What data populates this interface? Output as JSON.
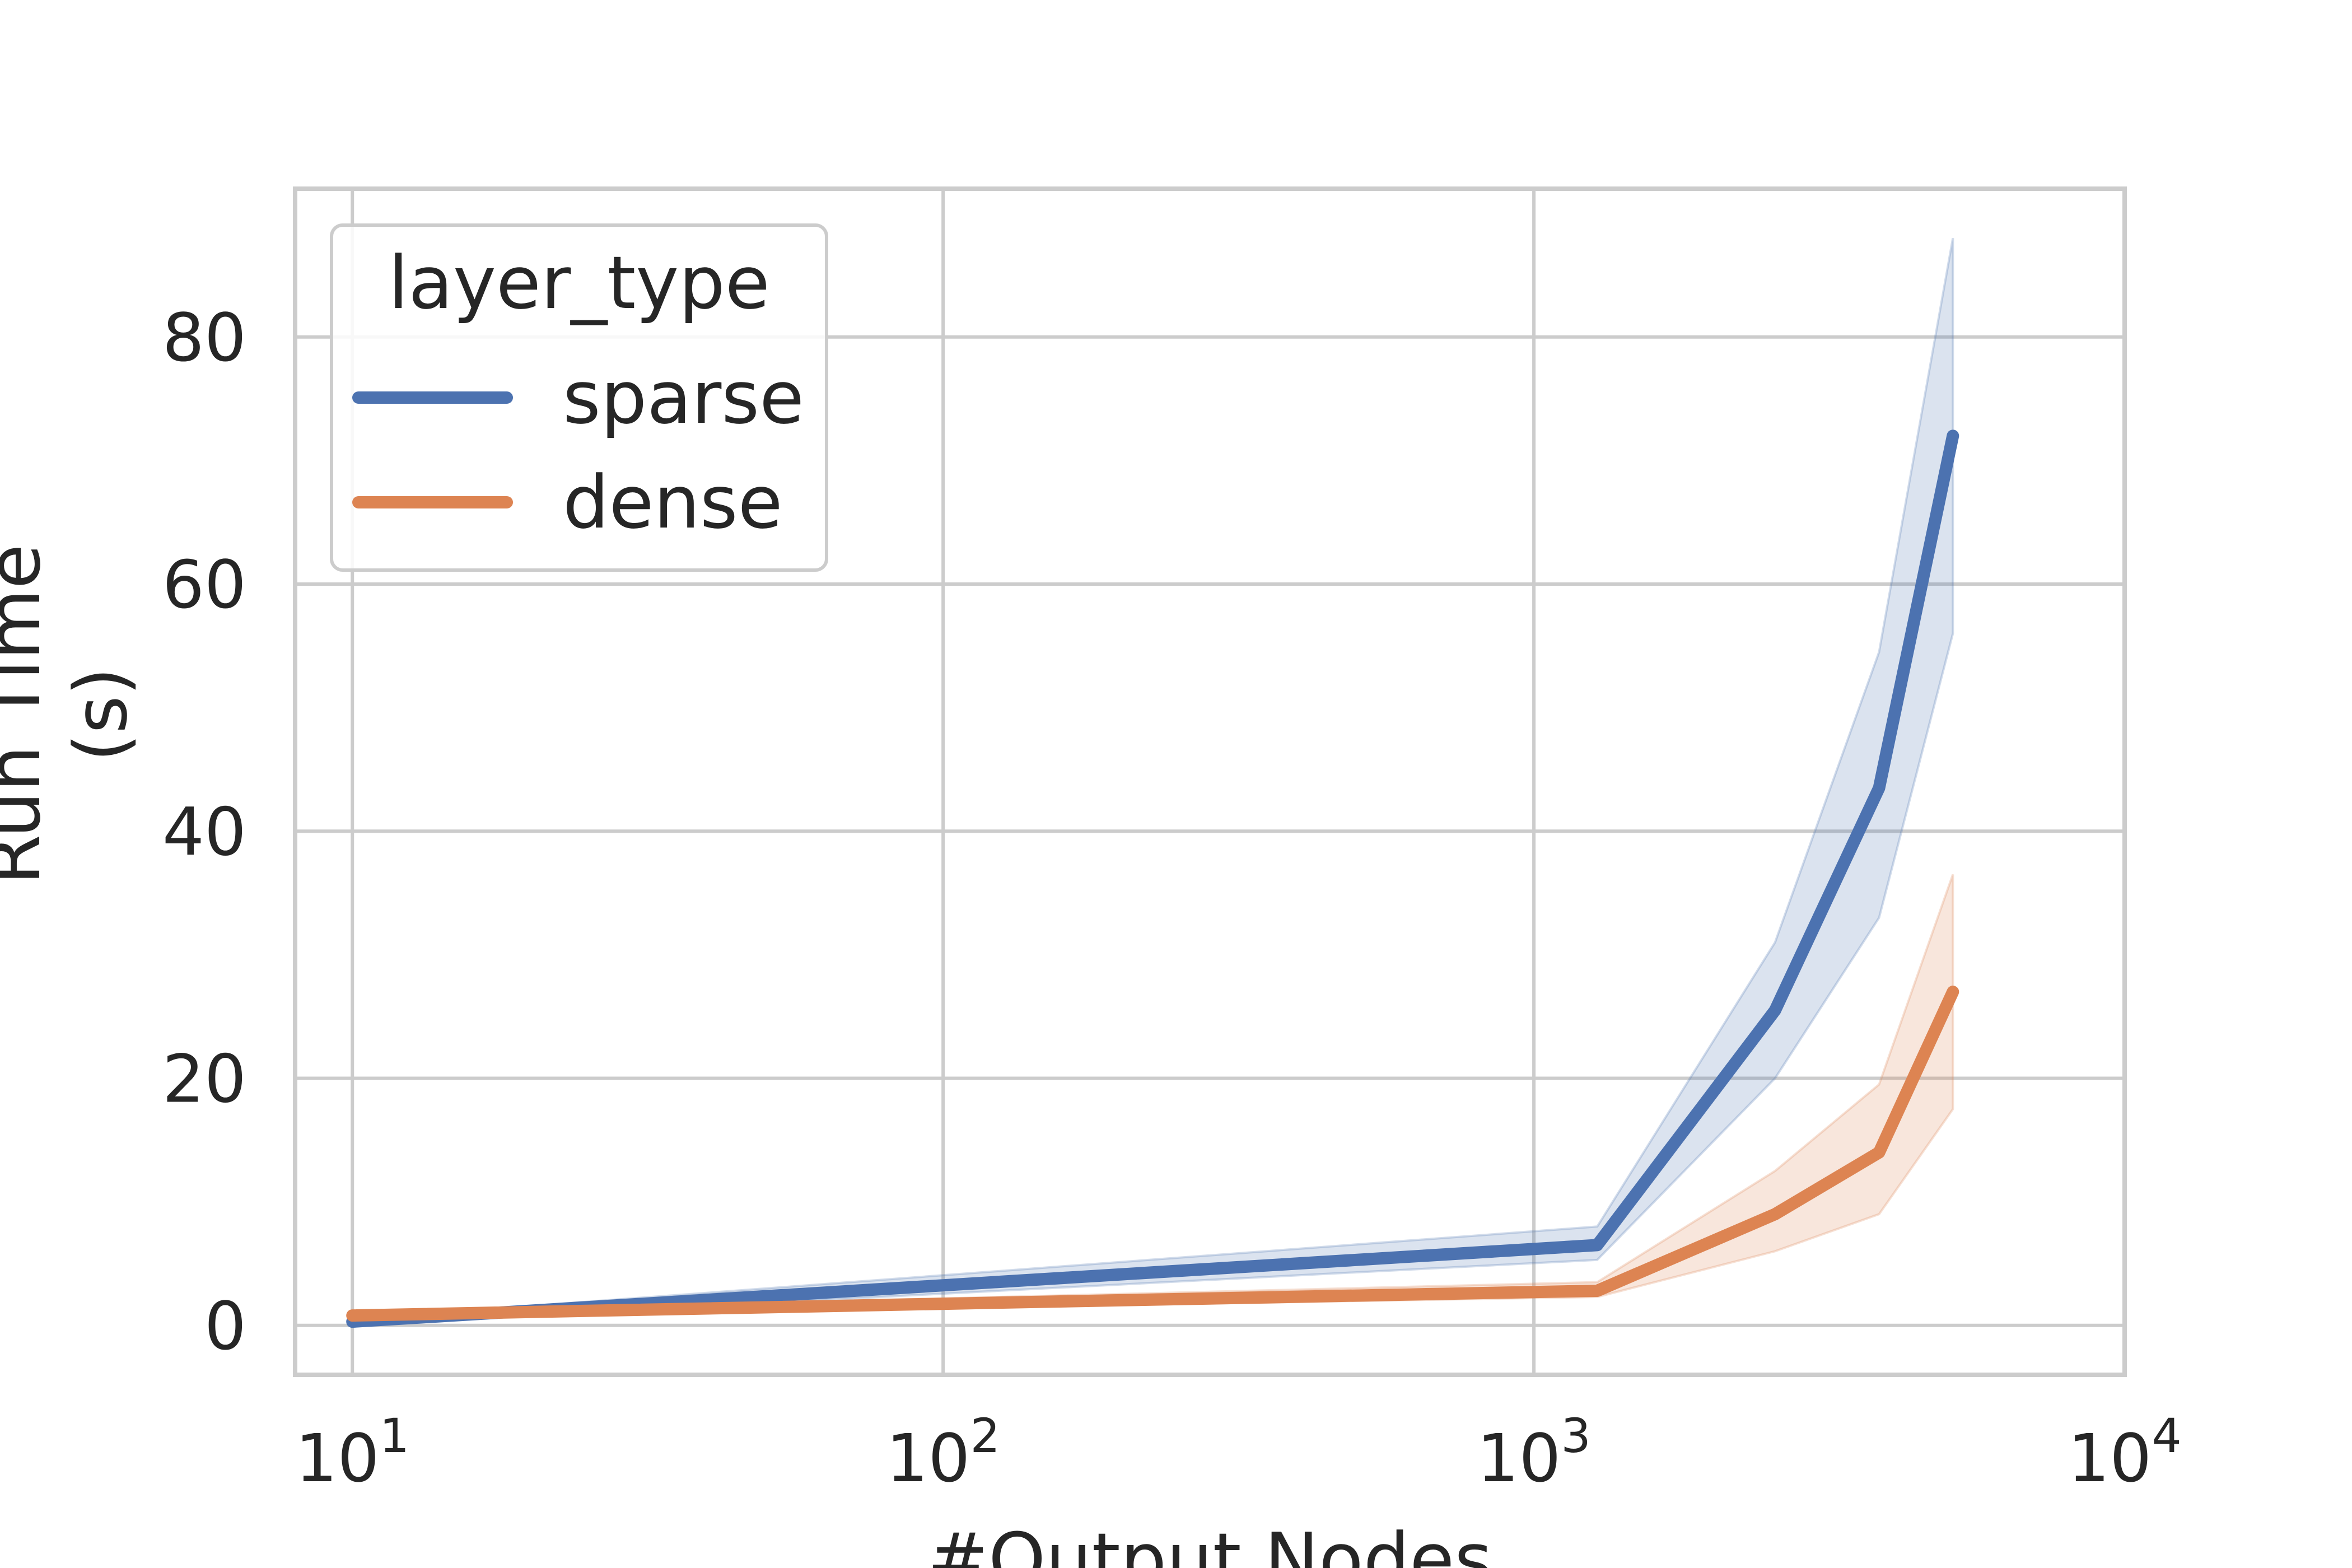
{
  "chart_data": {
    "type": "line",
    "xlabel": "#Output Nodes",
    "ylabel": "Run Time (s)",
    "ylabel_lines": [
      "Run Time",
      "(s)"
    ],
    "x_scale": "log",
    "xlim": [
      8,
      10000
    ],
    "ylim": [
      -4,
      92
    ],
    "x_ticks": [
      {
        "value": 10,
        "base": "10",
        "exp": "1"
      },
      {
        "value": 100,
        "base": "10",
        "exp": "2"
      },
      {
        "value": 1000,
        "base": "10",
        "exp": "3"
      },
      {
        "value": 10000,
        "base": "10",
        "exp": "4"
      }
    ],
    "y_ticks": [
      {
        "value": 0,
        "label": "0"
      },
      {
        "value": 20,
        "label": "20"
      },
      {
        "value": 40,
        "label": "40"
      },
      {
        "value": 60,
        "label": "60"
      },
      {
        "value": 80,
        "label": "80"
      }
    ],
    "grid": true,
    "legend": {
      "title": "layer_type",
      "position": "top-left"
    },
    "series": [
      {
        "name": "sparse",
        "color": "#4c72b0",
        "x": [
          10,
          1280,
          2560,
          3840,
          5120
        ],
        "y": [
          0.3,
          6.5,
          25.5,
          43.5,
          72.0
        ],
        "ci_low": [
          0.1,
          5.3,
          20.0,
          33.0,
          56.0
        ],
        "ci_high": [
          0.5,
          8.0,
          31.0,
          54.5,
          88.0
        ]
      },
      {
        "name": "dense",
        "color": "#dd8452",
        "x": [
          10,
          1280,
          2560,
          3840,
          5120
        ],
        "y": [
          0.8,
          2.8,
          9.0,
          14.0,
          27.0
        ],
        "ci_low": [
          0.6,
          2.3,
          6.0,
          9.0,
          17.5
        ],
        "ci_high": [
          1.0,
          3.5,
          12.5,
          19.5,
          36.5
        ]
      }
    ]
  }
}
